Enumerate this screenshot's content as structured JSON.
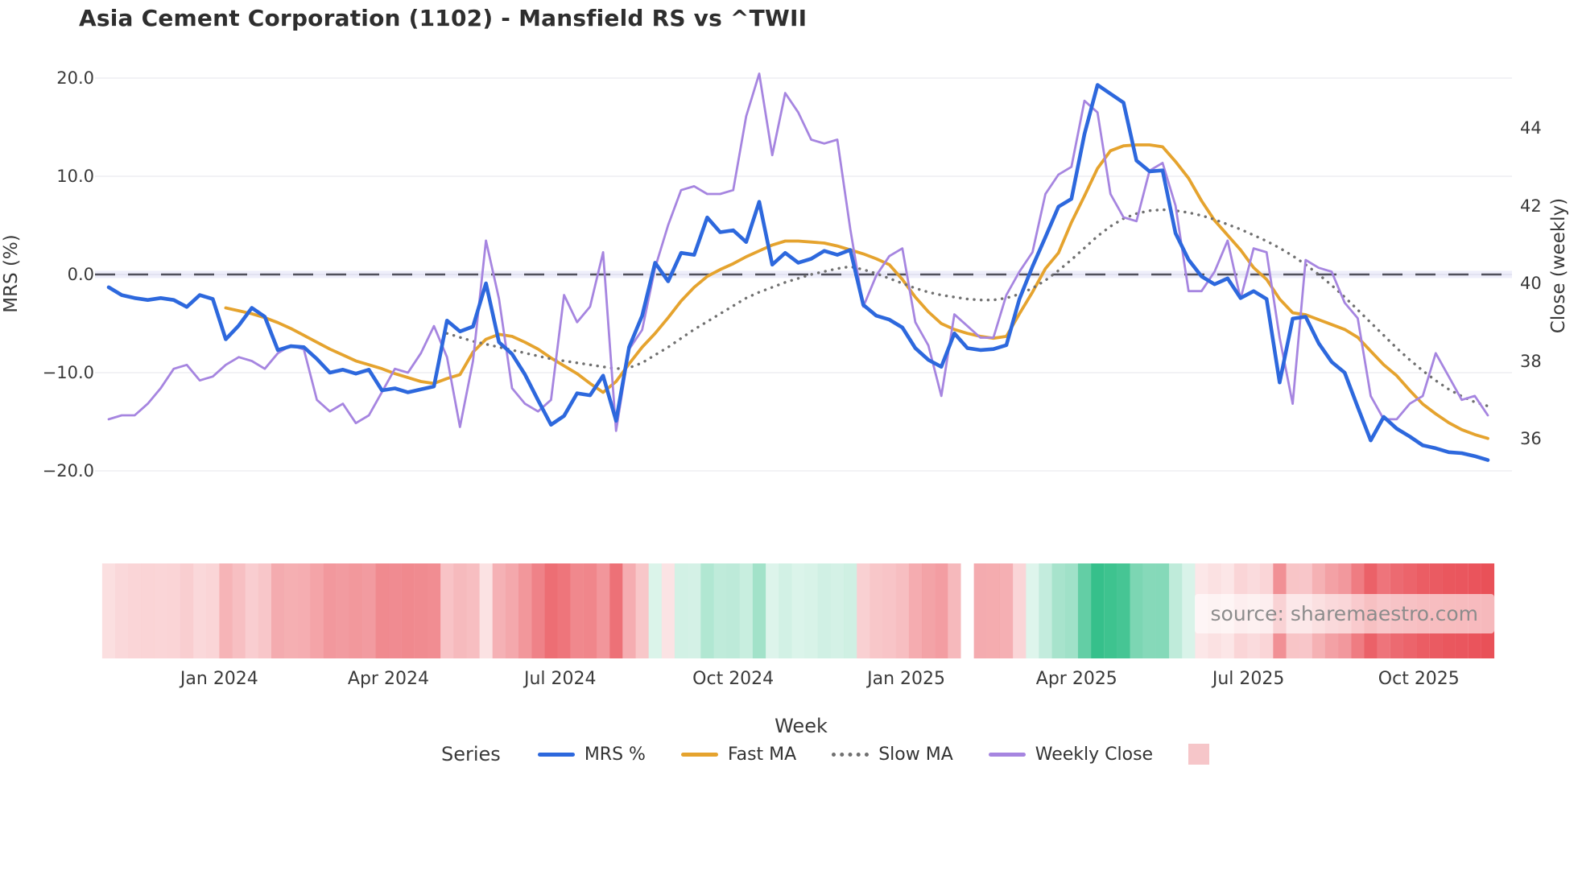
{
  "title": "Asia Cement Corporation (1102) - Mansfield RS vs ^TWII",
  "source_note": "source: sharemaestro.com",
  "axes": {
    "left": {
      "title": "MRS (%)",
      "ticks": [
        {
          "label": "20.0",
          "value": 20
        },
        {
          "label": "10.0",
          "value": 10
        },
        {
          "label": "0.0",
          "value": 0
        },
        {
          "label": "−10.0",
          "value": -10
        },
        {
          "label": "−20.0",
          "value": -20
        }
      ]
    },
    "right": {
      "title": "Close (weekly)",
      "ticks": [
        {
          "label": "44",
          "value": 44
        },
        {
          "label": "42",
          "value": 42
        },
        {
          "label": "40",
          "value": 40
        },
        {
          "label": "38",
          "value": 38
        },
        {
          "label": "36",
          "value": 36
        }
      ]
    },
    "x": {
      "title": "Week",
      "ticks": [
        {
          "label": "Jan 2024",
          "week": 8.5
        },
        {
          "label": "Apr 2024",
          "week": 21.5
        },
        {
          "label": "Jul 2024",
          "week": 34.7
        },
        {
          "label": "Oct 2024",
          "week": 48.0
        },
        {
          "label": "Jan 2025",
          "week": 61.3
        },
        {
          "label": "Apr 2025",
          "week": 74.4
        },
        {
          "label": "Jul 2025",
          "week": 87.6
        },
        {
          "label": "Oct 2025",
          "week": 100.7
        }
      ]
    }
  },
  "legend": {
    "title": "Series",
    "items": [
      {
        "label": "MRS %",
        "swatch": "line",
        "color": "#2d68dd"
      },
      {
        "label": "Fast MA",
        "swatch": "line",
        "color": "#e5a32e"
      },
      {
        "label": "Slow MA",
        "swatch": "dotted",
        "color": "#707070"
      },
      {
        "label": "Weekly Close",
        "swatch": "line",
        "color": "#a685e0"
      },
      {
        "label": "",
        "swatch": "square",
        "color": "#f6c6c9"
      }
    ]
  },
  "colors": {
    "mrs_line": "#2d68dd",
    "fast_ma": "#e5a32e",
    "slow_ma": "#707070",
    "weekly_close": "#a685e0",
    "zero_dash": "#50505c",
    "zero_band": "rgba(120,120,220,0.13)",
    "gridline": "#ededf2",
    "heat_negative": "#e84850",
    "heat_positive": "#2fbe87",
    "title_text": "#2e2e2e",
    "tick_text": "#3a3a3a",
    "source_text": "#8c8c8c"
  },
  "chart_data": {
    "type": "line",
    "x_unit": "weekly index, Nov 2023 - Nov 2025",
    "left_axis_range": [
      -20,
      20
    ],
    "right_axis_range": [
      36,
      45.5
    ],
    "grid": true,
    "zero_line": {
      "axis": "left",
      "value": 0,
      "style": "dashed"
    },
    "series": [
      {
        "name": "MRS %",
        "axis": "left",
        "style": "solid",
        "start_index": 0,
        "values": [
          -1.3,
          -2.1,
          -2.4,
          -2.6,
          -2.4,
          -2.6,
          -3.3,
          -2.1,
          -2.5,
          -6.6,
          -5.2,
          -3.4,
          -4.3,
          -7.7,
          -7.3,
          -7.4,
          -8.6,
          -10.0,
          -9.7,
          -10.1,
          -9.7,
          -11.8,
          -11.6,
          -12.0,
          -11.7,
          -11.4,
          -4.7,
          -5.8,
          -5.3,
          -0.9,
          -6.9,
          -8.1,
          -10.2,
          -12.8,
          -15.3,
          -14.4,
          -12.1,
          -12.3,
          -10.3,
          -14.9,
          -7.4,
          -4.2,
          1.2,
          -0.7,
          2.2,
          2.0,
          5.8,
          4.3,
          4.5,
          3.3,
          7.4,
          1.0,
          2.2,
          1.2,
          1.6,
          2.4,
          2.0,
          2.5,
          -3.1,
          -4.2,
          -4.6,
          -5.4,
          -7.5,
          -8.7,
          -9.4,
          -6.0,
          -7.5,
          -7.7,
          -7.6,
          -7.2,
          -2.5,
          0.8,
          3.8,
          6.9,
          7.7,
          14.3,
          19.3,
          18.4,
          17.5,
          11.6,
          10.5,
          10.6,
          4.2,
          1.5,
          -0.2,
          -1.0,
          -0.4,
          -2.4,
          -1.7,
          -2.5,
          -11.0,
          -4.5,
          -4.3,
          -7.0,
          -8.9,
          -10.0,
          -13.5,
          -16.9,
          -14.5,
          -15.7,
          -16.5,
          -17.4,
          -17.7,
          -18.1,
          -18.2,
          -18.5,
          -18.9
        ]
      },
      {
        "name": "Fast MA",
        "axis": "left",
        "style": "solid",
        "start_index": 9,
        "values": [
          -3.4,
          -3.7,
          -4.0,
          -4.4,
          -4.9,
          -5.5,
          -6.2,
          -6.9,
          -7.6,
          -8.2,
          -8.8,
          -9.2,
          -9.6,
          -10.1,
          -10.5,
          -10.9,
          -11.1,
          -10.6,
          -10.2,
          -7.9,
          -6.6,
          -6.1,
          -6.3,
          -6.9,
          -7.6,
          -8.5,
          -9.3,
          -10.1,
          -11.1,
          -12.0,
          -10.9,
          -9.1,
          -7.4,
          -6.0,
          -4.4,
          -2.7,
          -1.3,
          -0.2,
          0.5,
          1.1,
          1.8,
          2.4,
          3.0,
          3.4,
          3.4,
          3.3,
          3.2,
          2.9,
          2.5,
          2.1,
          1.6,
          1.0,
          -0.5,
          -2.3,
          -3.8,
          -5.0,
          -5.6,
          -6.0,
          -6.3,
          -6.5,
          -6.3,
          -4.0,
          -1.8,
          0.6,
          2.2,
          5.3,
          8.0,
          10.8,
          12.6,
          13.1,
          13.2,
          13.2,
          13.0,
          11.5,
          9.8,
          7.5,
          5.5,
          4.0,
          2.5,
          0.7,
          -0.5,
          -2.5,
          -3.9,
          -4.1,
          -4.6,
          -5.1,
          -5.6,
          -6.4,
          -7.8,
          -9.2,
          -10.3,
          -11.8,
          -13.2,
          -14.2,
          -15.1,
          -15.8,
          -16.3,
          -16.7
        ]
      },
      {
        "name": "Slow MA",
        "axis": "left",
        "style": "dotted",
        "start_index": 26,
        "values": [
          -6.0,
          -6.4,
          -6.8,
          -7.1,
          -7.4,
          -7.7,
          -8.0,
          -8.3,
          -8.6,
          -8.8,
          -9.0,
          -9.2,
          -9.4,
          -9.6,
          -9.5,
          -9.0,
          -8.2,
          -7.4,
          -6.5,
          -5.6,
          -4.8,
          -4.0,
          -3.2,
          -2.4,
          -1.8,
          -1.3,
          -0.8,
          -0.4,
          0.0,
          0.3,
          0.6,
          0.8,
          0.5,
          0.1,
          -0.4,
          -0.9,
          -1.4,
          -1.8,
          -2.1,
          -2.3,
          -2.5,
          -2.6,
          -2.6,
          -2.4,
          -2.0,
          -1.4,
          -0.6,
          0.4,
          1.5,
          2.7,
          3.9,
          4.9,
          5.7,
          6.2,
          6.5,
          6.6,
          6.5,
          6.3,
          6.0,
          5.6,
          5.1,
          4.6,
          4.0,
          3.4,
          2.7,
          1.9,
          1.0,
          0.0,
          -1.1,
          -2.3,
          -3.6,
          -4.9,
          -6.2,
          -7.5,
          -8.7,
          -9.8,
          -10.8,
          -11.7,
          -12.4,
          -13.0,
          -13.4
        ]
      },
      {
        "name": "Weekly Close",
        "axis": "right",
        "style": "solid",
        "start_index": 0,
        "values": [
          36.5,
          36.6,
          36.6,
          36.9,
          37.3,
          37.8,
          37.9,
          37.5,
          37.6,
          37.9,
          38.1,
          38.0,
          37.8,
          38.2,
          38.4,
          38.3,
          37.0,
          36.7,
          36.9,
          36.4,
          36.6,
          37.2,
          37.8,
          37.7,
          38.2,
          38.9,
          38.1,
          36.3,
          38.0,
          41.1,
          39.6,
          37.3,
          36.9,
          36.7,
          37.0,
          39.7,
          39.0,
          39.4,
          40.8,
          36.2,
          38.3,
          38.8,
          40.4,
          41.5,
          42.4,
          42.5,
          42.3,
          42.3,
          42.4,
          44.3,
          45.4,
          43.3,
          44.9,
          44.4,
          43.7,
          43.6,
          43.7,
          41.4,
          39.4,
          40.2,
          40.7,
          40.9,
          39.0,
          38.4,
          37.1,
          39.2,
          38.9,
          38.6,
          38.6,
          39.7,
          40.3,
          40.8,
          42.3,
          42.8,
          43.0,
          44.7,
          44.4,
          42.3,
          41.7,
          41.6,
          42.9,
          43.1,
          42.0,
          39.8,
          39.8,
          40.3,
          41.1,
          39.6,
          40.9,
          40.8,
          38.6,
          36.9,
          40.6,
          40.4,
          40.3,
          39.5,
          39.1,
          37.1,
          36.5,
          36.5,
          36.9,
          37.1,
          38.2,
          37.6,
          37.0,
          37.1,
          36.6
        ]
      }
    ],
    "heatmap": {
      "source_series": "MRS %",
      "gap_index": 66,
      "negative_color": "#e84850",
      "positive_color": "#2fbe87",
      "full_scale": 20,
      "min_alpha": 0.12
    }
  }
}
